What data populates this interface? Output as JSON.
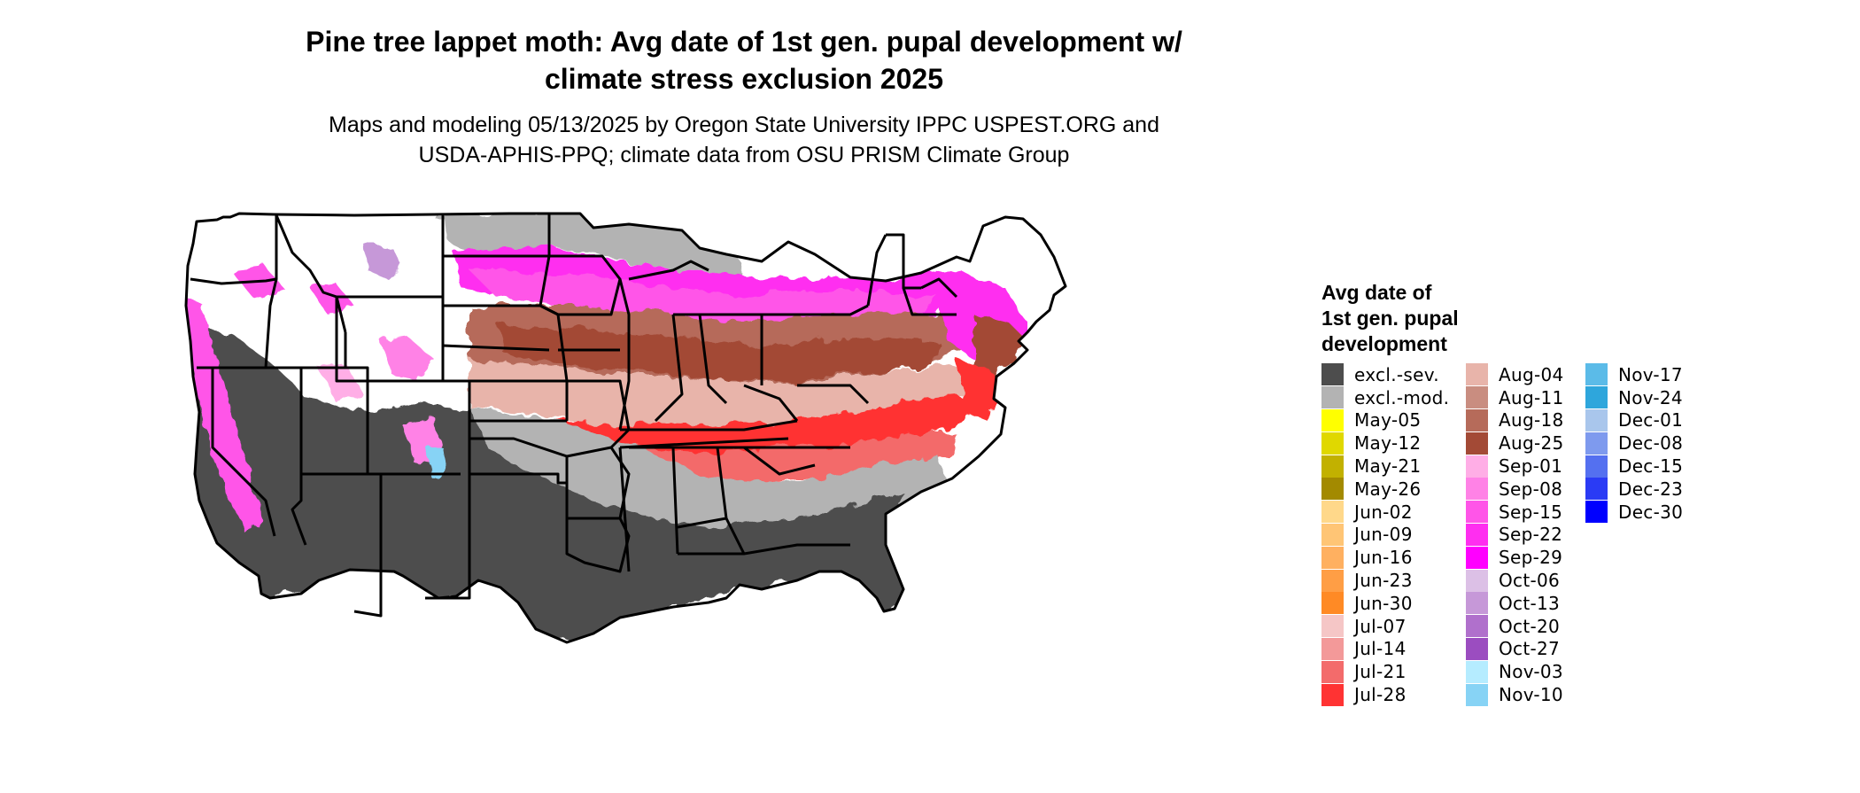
{
  "title": {
    "line1": "Pine tree lappet moth: Avg date of 1st gen. pupal development w/",
    "line2": "climate stress exclusion 2025"
  },
  "subtitle": {
    "line1": "Maps and modeling 05/13/2025 by Oregon State University IPPC USPEST.ORG and",
    "line2": "USDA-APHIS-PPQ; climate data from OSU PRISM Climate Group"
  },
  "legend": {
    "title_lines": [
      "Avg date of",
      "1st gen. pupal",
      "development"
    ],
    "columns": [
      [
        {
          "label": "excl.-sev.",
          "color": "#4d4d4d"
        },
        {
          "label": "excl.-mod.",
          "color": "#b3b3b3"
        },
        {
          "label": "May-05",
          "color": "#ffff00"
        },
        {
          "label": "May-12",
          "color": "#e0d800"
        },
        {
          "label": "May-21",
          "color": "#c2b100"
        },
        {
          "label": "May-26",
          "color": "#a38a00"
        },
        {
          "label": "Jun-02",
          "color": "#ffd88a"
        },
        {
          "label": "Jun-09",
          "color": "#ffc575"
        },
        {
          "label": "Jun-16",
          "color": "#ffb060"
        },
        {
          "label": "Jun-23",
          "color": "#ff9e45"
        },
        {
          "label": "Jun-30",
          "color": "#ff8a25"
        },
        {
          "label": "Jul-07",
          "color": "#f5c6c6"
        },
        {
          "label": "Jul-14",
          "color": "#f39999"
        },
        {
          "label": "Jul-21",
          "color": "#f36b6b"
        },
        {
          "label": "Jul-28",
          "color": "#ff3333"
        }
      ],
      [
        {
          "label": "Aug-04",
          "color": "#e8b4aa"
        },
        {
          "label": "Aug-11",
          "color": "#c98d80"
        },
        {
          "label": "Aug-18",
          "color": "#b66b5a"
        },
        {
          "label": "Aug-25",
          "color": "#a34a36"
        },
        {
          "label": "Sep-01",
          "color": "#ffaee6"
        },
        {
          "label": "Sep-08",
          "color": "#ff82e6"
        },
        {
          "label": "Sep-15",
          "color": "#ff55e8"
        },
        {
          "label": "Sep-22",
          "color": "#ff2ef0"
        },
        {
          "label": "Sep-29",
          "color": "#ff00ff"
        },
        {
          "label": "Oct-06",
          "color": "#dcc0e6"
        },
        {
          "label": "Oct-13",
          "color": "#c698d8"
        },
        {
          "label": "Oct-20",
          "color": "#b070cc"
        },
        {
          "label": "Oct-27",
          "color": "#9b4dc0"
        },
        {
          "label": "Nov-03",
          "color": "#b5ecff"
        },
        {
          "label": "Nov-10",
          "color": "#87d3f5"
        }
      ],
      [
        {
          "label": "Nov-17",
          "color": "#5bbbe8"
        },
        {
          "label": "Nov-24",
          "color": "#2ea6dc"
        },
        {
          "label": "Dec-01",
          "color": "#a9c6ec"
        },
        {
          "label": "Dec-08",
          "color": "#7e9aee"
        },
        {
          "label": "Dec-15",
          "color": "#5470f0"
        },
        {
          "label": "Dec-23",
          "color": "#2a3bf5"
        },
        {
          "label": "Dec-30",
          "color": "#0000ff"
        }
      ]
    ]
  }
}
